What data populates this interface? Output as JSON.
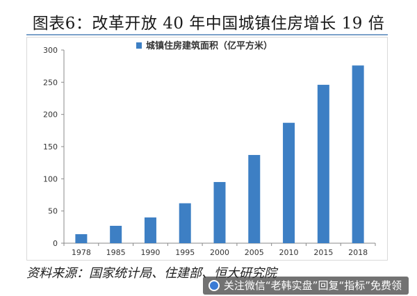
{
  "header": {
    "title": "图表6：改革开放 40 年中国城镇住房增长 19 倍"
  },
  "footer": {
    "source": "资料来源：国家统计局、住建部、恒大研究院",
    "watermark": "关注微信“老韩实盘”回复“指标”免费领"
  },
  "colors": {
    "bar": "#3d7fc4",
    "axis": "#888888",
    "text": "#333333"
  },
  "chart_data": {
    "type": "bar",
    "categories": [
      "1978",
      "1985",
      "1990",
      "1995",
      "2000",
      "2005",
      "2010",
      "2015",
      "2018"
    ],
    "series": [
      {
        "name": "城镇住房建筑面积（亿平方米）",
        "values": [
          14,
          27,
          40,
          62,
          95,
          137,
          187,
          246,
          276
        ]
      }
    ],
    "title": "",
    "xlabel": "",
    "ylabel": "",
    "ylim": [
      0,
      300
    ],
    "yticks": [
      0,
      50,
      100,
      150,
      200,
      250,
      300
    ],
    "grid": false,
    "legend": "top-center"
  }
}
